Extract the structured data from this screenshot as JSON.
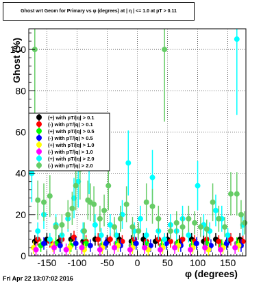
{
  "chart_data": {
    "type": "scatter",
    "title": "Ghost wrt Geom for Primary vs φ (degrees) at | η | <= 1.0 at pT > 0.11",
    "xlabel": "φ (degrees)",
    "ylabel": "Ghost (%)",
    "xlim": [
      -180,
      180
    ],
    "ylim": [
      0,
      110
    ],
    "x_ticks": [
      "-150",
      "-100",
      "-50",
      "0",
      "50",
      "100",
      "150"
    ],
    "y_ticks": [
      "0",
      "20",
      "40",
      "60",
      "80",
      "100"
    ],
    "grid": true,
    "legend_placement": "left-middle",
    "series": [
      {
        "name": "(+) with pT/|q| > 0.1",
        "color": "#000000",
        "values": [
          [
            -170,
            7
          ],
          [
            -150,
            8
          ],
          [
            -130,
            7
          ],
          [
            -110,
            8
          ],
          [
            -90,
            7
          ],
          [
            -70,
            8
          ],
          [
            -50,
            7
          ],
          [
            -30,
            8
          ],
          [
            -10,
            7
          ],
          [
            10,
            8
          ],
          [
            30,
            7
          ],
          [
            50,
            8
          ],
          [
            70,
            7
          ],
          [
            90,
            8
          ],
          [
            110,
            7
          ],
          [
            130,
            8
          ],
          [
            150,
            7
          ],
          [
            170,
            8
          ]
        ]
      },
      {
        "name": "(-) with pT/|q| > 0.1",
        "color": "#ff0000",
        "values": [
          [
            -165,
            8
          ],
          [
            -145,
            7
          ],
          [
            -125,
            8
          ],
          [
            -105,
            9
          ],
          [
            -85,
            7
          ],
          [
            -65,
            8
          ],
          [
            -45,
            8
          ],
          [
            -25,
            7
          ],
          [
            -5,
            8
          ],
          [
            15,
            7
          ],
          [
            35,
            8
          ],
          [
            55,
            7
          ],
          [
            75,
            8
          ],
          [
            95,
            7
          ],
          [
            115,
            8
          ],
          [
            135,
            7
          ],
          [
            155,
            8
          ],
          [
            175,
            7
          ]
        ]
      },
      {
        "name": "(+) with pT/|q| > 0.5",
        "color": "#00ff00",
        "values": [
          [
            -160,
            5
          ],
          [
            -135,
            6
          ],
          [
            -110,
            5
          ],
          [
            -85,
            6
          ],
          [
            -60,
            5
          ],
          [
            -35,
            6
          ],
          [
            -10,
            5
          ],
          [
            15,
            6
          ],
          [
            40,
            5
          ],
          [
            65,
            6
          ],
          [
            90,
            5
          ],
          [
            115,
            6
          ],
          [
            140,
            5
          ],
          [
            165,
            6
          ]
        ]
      },
      {
        "name": "(-) with pT/|q| > 0.5",
        "color": "#0000ff",
        "values": [
          [
            -155,
            6
          ],
          [
            -128,
            5
          ],
          [
            -102,
            6
          ],
          [
            -78,
            5
          ],
          [
            -52,
            6
          ],
          [
            -28,
            5
          ],
          [
            -2,
            6
          ],
          [
            22,
            5
          ],
          [
            48,
            6
          ],
          [
            72,
            5
          ],
          [
            98,
            6
          ],
          [
            122,
            5
          ],
          [
            148,
            6
          ],
          [
            172,
            5
          ]
        ]
      },
      {
        "name": "(+) with pT/|q| > 1.0",
        "color": "#ffff00",
        "values": [
          [
            -172,
            4
          ],
          [
            -140,
            5
          ],
          [
            -112,
            4
          ],
          [
            -88,
            3
          ],
          [
            -58,
            4
          ],
          [
            -32,
            5
          ],
          [
            -8,
            4
          ],
          [
            18,
            3
          ],
          [
            42,
            4
          ],
          [
            68,
            5
          ],
          [
            92,
            4
          ],
          [
            118,
            3
          ],
          [
            142,
            4
          ],
          [
            168,
            5
          ]
        ]
      },
      {
        "name": "(-) with pT/|q| > 1.0",
        "color": "#ff00ff",
        "values": [
          [
            -168,
            3
          ],
          [
            -138,
            4
          ],
          [
            -118,
            3
          ],
          [
            -92,
            4
          ],
          [
            -62,
            3
          ],
          [
            -38,
            4
          ],
          [
            -12,
            3
          ],
          [
            12,
            4
          ],
          [
            38,
            3
          ],
          [
            62,
            4
          ],
          [
            88,
            3
          ],
          [
            112,
            4
          ],
          [
            138,
            3
          ],
          [
            162,
            4
          ]
        ]
      },
      {
        "name": "(+) with pT/|q| > 2.0",
        "color": "#00ffff",
        "values": [
          [
            -175,
            40
          ],
          [
            -165,
            12
          ],
          [
            -155,
            20
          ],
          [
            -145,
            8
          ],
          [
            -135,
            15
          ],
          [
            -125,
            10
          ],
          [
            -115,
            18
          ],
          [
            -105,
            28
          ],
          [
            -98,
            36
          ],
          [
            -90,
            12
          ],
          [
            -80,
            46
          ],
          [
            -70,
            15
          ],
          [
            -60,
            10
          ],
          [
            -45,
            15
          ],
          [
            -35,
            10
          ],
          [
            -25,
            20
          ],
          [
            -15,
            45
          ],
          [
            -5,
            12
          ],
          [
            5,
            18
          ],
          [
            15,
            10
          ],
          [
            25,
            38
          ],
          [
            35,
            12
          ],
          [
            45,
            8
          ],
          [
            55,
            15
          ],
          [
            65,
            12
          ],
          [
            75,
            18
          ],
          [
            85,
            10
          ],
          [
            100,
            34
          ],
          [
            110,
            15
          ],
          [
            120,
            12
          ],
          [
            130,
            22
          ],
          [
            140,
            18
          ],
          [
            150,
            10
          ],
          [
            165,
            105
          ],
          [
            175,
            15
          ]
        ]
      },
      {
        "name": "(-) with pT/|q| > 2.0",
        "color": "#66cc66",
        "values": [
          [
            -170,
            100
          ],
          [
            -165,
            27
          ],
          [
            -155,
            26
          ],
          [
            -145,
            29
          ],
          [
            -135,
            14
          ],
          [
            -125,
            15
          ],
          [
            -115,
            20
          ],
          [
            -108,
            23
          ],
          [
            -102,
            34
          ],
          [
            -95,
            42
          ],
          [
            -88,
            12
          ],
          [
            -82,
            27
          ],
          [
            -78,
            26
          ],
          [
            -72,
            25
          ],
          [
            -62,
            18
          ],
          [
            -55,
            22
          ],
          [
            -48,
            34
          ],
          [
            -38,
            14
          ],
          [
            -28,
            18
          ],
          [
            -18,
            25
          ],
          [
            -8,
            14
          ],
          [
            2,
            12
          ],
          [
            15,
            26
          ],
          [
            25,
            24
          ],
          [
            35,
            18
          ],
          [
            45,
            100
          ],
          [
            55,
            12
          ],
          [
            65,
            16
          ],
          [
            75,
            14
          ],
          [
            85,
            18
          ],
          [
            95,
            16
          ],
          [
            105,
            14
          ],
          [
            115,
            13
          ],
          [
            125,
            26
          ],
          [
            135,
            18
          ],
          [
            145,
            14
          ],
          [
            155,
            30
          ],
          [
            165,
            30
          ],
          [
            172,
            20
          ],
          [
            178,
            16
          ]
        ]
      }
    ]
  }
}
